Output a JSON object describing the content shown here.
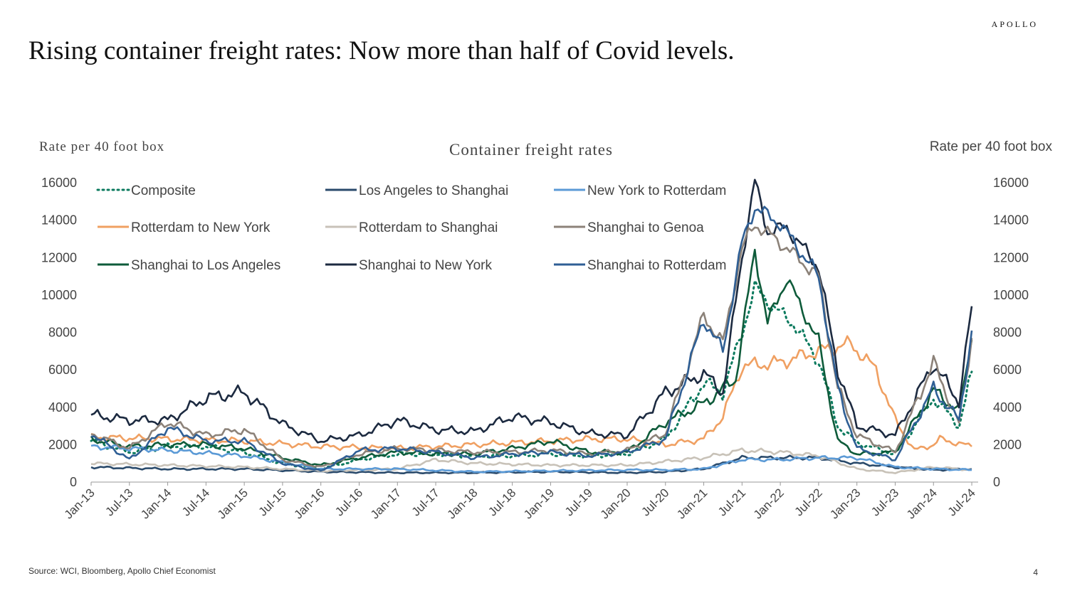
{
  "brand": "APOLLO",
  "slide_title": "Rising container freight rates: Now more than half of Covid levels.",
  "source": "Source: WCI, Bloomberg, Apollo Chief Economist",
  "page_number": "4",
  "chart_data": {
    "type": "line",
    "title": "Container freight rates",
    "ylabel_left": "Rate per 40 foot box",
    "ylabel_right": "Rate per 40 foot box",
    "ylim": [
      0,
      16000
    ],
    "yticks": [
      0,
      2000,
      4000,
      6000,
      8000,
      10000,
      12000,
      14000,
      16000
    ],
    "xticks": [
      "Jan-13",
      "Jul-13",
      "Jan-14",
      "Jul-14",
      "Jan-15",
      "Jul-15",
      "Jan-16",
      "Jul-16",
      "Jan-17",
      "Jul-17",
      "Jan-18",
      "Jul-18",
      "Jan-19",
      "Jul-19",
      "Jan-20",
      "Jul-20",
      "Jan-21",
      "Jul-21",
      "Jan-22",
      "Jul-22",
      "Jan-23",
      "Jul-23",
      "Jan-24",
      "Jul-24"
    ],
    "xlim": [
      "2013-01",
      "2024-08"
    ],
    "grid": false,
    "legend_position": "top, inside plot (3 columns)",
    "series": [
      {
        "name": "Composite",
        "color": "#0b7a5e",
        "dash": "dot",
        "points": [
          [
            "2013-01",
            2200
          ],
          [
            "2013-07",
            1600
          ],
          [
            "2014-01",
            1900
          ],
          [
            "2014-07",
            1900
          ],
          [
            "2015-01",
            1600
          ],
          [
            "2015-07",
            1000
          ],
          [
            "2016-01",
            700
          ],
          [
            "2016-07",
            1200
          ],
          [
            "2017-01",
            1500
          ],
          [
            "2017-07",
            1500
          ],
          [
            "2018-01",
            1400
          ],
          [
            "2018-07",
            1400
          ],
          [
            "2019-01",
            1500
          ],
          [
            "2019-07",
            1400
          ],
          [
            "2020-01",
            1500
          ],
          [
            "2020-07",
            2300
          ],
          [
            "2021-01",
            5300
          ],
          [
            "2021-04",
            4800
          ],
          [
            "2021-07",
            8000
          ],
          [
            "2021-09",
            10400
          ],
          [
            "2021-12",
            9300
          ],
          [
            "2022-03",
            8500
          ],
          [
            "2022-07",
            6500
          ],
          [
            "2022-10",
            3000
          ],
          [
            "2023-01",
            2100
          ],
          [
            "2023-07",
            1500
          ],
          [
            "2024-01",
            4500
          ],
          [
            "2024-05",
            3000
          ],
          [
            "2024-07",
            5900
          ]
        ]
      },
      {
        "name": "Rotterdam to New York",
        "color": "#f0a062",
        "dash": "solid",
        "points": [
          [
            "2013-01",
            2400
          ],
          [
            "2014-01",
            2300
          ],
          [
            "2015-01",
            2200
          ],
          [
            "2016-01",
            1900
          ],
          [
            "2017-01",
            1800
          ],
          [
            "2018-01",
            2000
          ],
          [
            "2019-01",
            2200
          ],
          [
            "2019-07",
            2300
          ],
          [
            "2020-01",
            2300
          ],
          [
            "2020-07",
            2000
          ],
          [
            "2021-01",
            2300
          ],
          [
            "2021-04",
            3500
          ],
          [
            "2021-07",
            6200
          ],
          [
            "2022-01",
            6400
          ],
          [
            "2022-07",
            7000
          ],
          [
            "2022-12",
            7400
          ],
          [
            "2023-04",
            6000
          ],
          [
            "2023-07",
            3300
          ],
          [
            "2023-10",
            1700
          ],
          [
            "2024-01",
            2000
          ],
          [
            "2024-02",
            2300
          ],
          [
            "2024-07",
            1900
          ]
        ]
      },
      {
        "name": "Shanghai to Los Angeles",
        "color": "#0e5b3a",
        "dash": "solid",
        "points": [
          [
            "2013-01",
            2300
          ],
          [
            "2013-07",
            1900
          ],
          [
            "2014-01",
            2000
          ],
          [
            "2014-07",
            2000
          ],
          [
            "2015-01",
            1800
          ],
          [
            "2015-07",
            1300
          ],
          [
            "2016-01",
            900
          ],
          [
            "2016-07",
            1300
          ],
          [
            "2017-01",
            1600
          ],
          [
            "2017-07",
            1500
          ],
          [
            "2018-01",
            1500
          ],
          [
            "2018-07",
            1800
          ],
          [
            "2019-01",
            2200
          ],
          [
            "2019-07",
            1600
          ],
          [
            "2020-01",
            1600
          ],
          [
            "2020-07",
            3200
          ],
          [
            "2021-01",
            4200
          ],
          [
            "2021-06",
            5500
          ],
          [
            "2021-09",
            12400
          ],
          [
            "2021-11",
            8500
          ],
          [
            "2022-02",
            10900
          ],
          [
            "2022-07",
            7500
          ],
          [
            "2022-10",
            2200
          ],
          [
            "2023-01",
            1500
          ],
          [
            "2023-07",
            1600
          ],
          [
            "2024-01",
            4900
          ],
          [
            "2024-05",
            3800
          ],
          [
            "2024-07",
            7600
          ]
        ]
      },
      {
        "name": "Los Angeles to Shanghai",
        "color": "#2a4a6b",
        "dash": "solid",
        "points": [
          [
            "2013-01",
            800
          ],
          [
            "2014-01",
            700
          ],
          [
            "2015-01",
            700
          ],
          [
            "2016-01",
            550
          ],
          [
            "2017-01",
            500
          ],
          [
            "2018-01",
            500
          ],
          [
            "2019-01",
            550
          ],
          [
            "2020-01",
            500
          ],
          [
            "2020-07",
            550
          ],
          [
            "2021-01",
            700
          ],
          [
            "2021-07",
            1300
          ],
          [
            "2022-01",
            1300
          ],
          [
            "2022-07",
            1300
          ],
          [
            "2023-01",
            1000
          ],
          [
            "2023-07",
            800
          ],
          [
            "2024-01",
            650
          ],
          [
            "2024-07",
            700
          ]
        ]
      },
      {
        "name": "Rotterdam to Shanghai",
        "color": "#c8c2b8",
        "dash": "solid",
        "points": [
          [
            "2013-01",
            1000
          ],
          [
            "2014-01",
            900
          ],
          [
            "2015-01",
            800
          ],
          [
            "2016-01",
            600
          ],
          [
            "2016-07",
            650
          ],
          [
            "2017-01",
            700
          ],
          [
            "2017-07",
            1200
          ],
          [
            "2018-01",
            1000
          ],
          [
            "2019-01",
            900
          ],
          [
            "2020-01",
            900
          ],
          [
            "2020-07",
            1100
          ],
          [
            "2021-01",
            1300
          ],
          [
            "2021-07",
            1700
          ],
          [
            "2022-01",
            1600
          ],
          [
            "2022-07",
            1400
          ],
          [
            "2023-01",
            700
          ],
          [
            "2023-07",
            500
          ],
          [
            "2024-01",
            800
          ],
          [
            "2024-07",
            650
          ]
        ]
      },
      {
        "name": "Shanghai to New York",
        "color": "#1c2a40",
        "dash": "solid",
        "points": [
          [
            "2013-01",
            3600
          ],
          [
            "2013-07",
            3300
          ],
          [
            "2014-01",
            3300
          ],
          [
            "2014-07",
            4500
          ],
          [
            "2015-01",
            4800
          ],
          [
            "2015-07",
            3100
          ],
          [
            "2016-01",
            2200
          ],
          [
            "2016-07",
            2500
          ],
          [
            "2017-01",
            3300
          ],
          [
            "2017-07",
            2800
          ],
          [
            "2018-01",
            2700
          ],
          [
            "2018-07",
            3500
          ],
          [
            "2019-01",
            3200
          ],
          [
            "2019-07",
            2600
          ],
          [
            "2020-01",
            2500
          ],
          [
            "2020-07",
            4800
          ],
          [
            "2021-01",
            5800
          ],
          [
            "2021-04",
            4800
          ],
          [
            "2021-07",
            12000
          ],
          [
            "2021-09",
            16100
          ],
          [
            "2021-11",
            13400
          ],
          [
            "2022-02",
            13600
          ],
          [
            "2022-07",
            11500
          ],
          [
            "2022-10",
            6000
          ],
          [
            "2023-01",
            3000
          ],
          [
            "2023-07",
            2500
          ],
          [
            "2024-01",
            6300
          ],
          [
            "2024-05",
            4300
          ],
          [
            "2024-07",
            9400
          ]
        ]
      },
      {
        "name": "New York to Rotterdam",
        "color": "#5b9ad6",
        "dash": "solid",
        "points": [
          [
            "2013-01",
            1900
          ],
          [
            "2014-01",
            1700
          ],
          [
            "2015-01",
            1400
          ],
          [
            "2016-01",
            700
          ],
          [
            "2017-01",
            700
          ],
          [
            "2018-01",
            550
          ],
          [
            "2019-01",
            600
          ],
          [
            "2020-01",
            650
          ],
          [
            "2020-07",
            650
          ],
          [
            "2021-01",
            700
          ],
          [
            "2021-07",
            1200
          ],
          [
            "2022-01",
            1200
          ],
          [
            "2022-07",
            1300
          ],
          [
            "2023-01",
            1300
          ],
          [
            "2023-07",
            800
          ],
          [
            "2024-01",
            700
          ],
          [
            "2024-07",
            650
          ]
        ]
      },
      {
        "name": "Shanghai to Genoa",
        "color": "#8c8279",
        "dash": "solid",
        "points": [
          [
            "2013-01",
            2600
          ],
          [
            "2013-07",
            1800
          ],
          [
            "2014-01",
            3200
          ],
          [
            "2014-07",
            2500
          ],
          [
            "2015-01",
            2800
          ],
          [
            "2015-07",
            1200
          ],
          [
            "2016-01",
            800
          ],
          [
            "2016-07",
            1500
          ],
          [
            "2017-01",
            1800
          ],
          [
            "2017-07",
            1700
          ],
          [
            "2018-01",
            1600
          ],
          [
            "2018-07",
            1600
          ],
          [
            "2019-01",
            1700
          ],
          [
            "2019-07",
            1500
          ],
          [
            "2020-01",
            1700
          ],
          [
            "2020-07",
            2600
          ],
          [
            "2021-01",
            8900
          ],
          [
            "2021-04",
            7400
          ],
          [
            "2021-07",
            12500
          ],
          [
            "2021-09",
            13800
          ],
          [
            "2022-01",
            12800
          ],
          [
            "2022-07",
            11000
          ],
          [
            "2022-10",
            5000
          ],
          [
            "2023-01",
            2500
          ],
          [
            "2023-07",
            1600
          ],
          [
            "2024-01",
            6400
          ],
          [
            "2024-05",
            3100
          ],
          [
            "2024-07",
            7700
          ]
        ]
      },
      {
        "name": "Shanghai to Rotterdam",
        "color": "#2f5f95",
        "dash": "solid",
        "points": [
          [
            "2013-01",
            2600
          ],
          [
            "2013-07",
            1200
          ],
          [
            "2014-01",
            2900
          ],
          [
            "2014-07",
            2200
          ],
          [
            "2015-01",
            2200
          ],
          [
            "2015-07",
            1000
          ],
          [
            "2016-01",
            600
          ],
          [
            "2016-07",
            1700
          ],
          [
            "2017-01",
            1800
          ],
          [
            "2017-07",
            1600
          ],
          [
            "2018-01",
            1300
          ],
          [
            "2018-07",
            1500
          ],
          [
            "2019-01",
            1600
          ],
          [
            "2019-07",
            1400
          ],
          [
            "2020-01",
            1600
          ],
          [
            "2020-07",
            2300
          ],
          [
            "2021-01",
            8700
          ],
          [
            "2021-04",
            7000
          ],
          [
            "2021-07",
            12800
          ],
          [
            "2021-09",
            14700
          ],
          [
            "2022-01",
            13800
          ],
          [
            "2022-07",
            11000
          ],
          [
            "2022-10",
            5000
          ],
          [
            "2023-01",
            1800
          ],
          [
            "2023-07",
            1200
          ],
          [
            "2024-01",
            5000
          ],
          [
            "2024-05",
            3300
          ],
          [
            "2024-07",
            8100
          ]
        ]
      }
    ]
  }
}
